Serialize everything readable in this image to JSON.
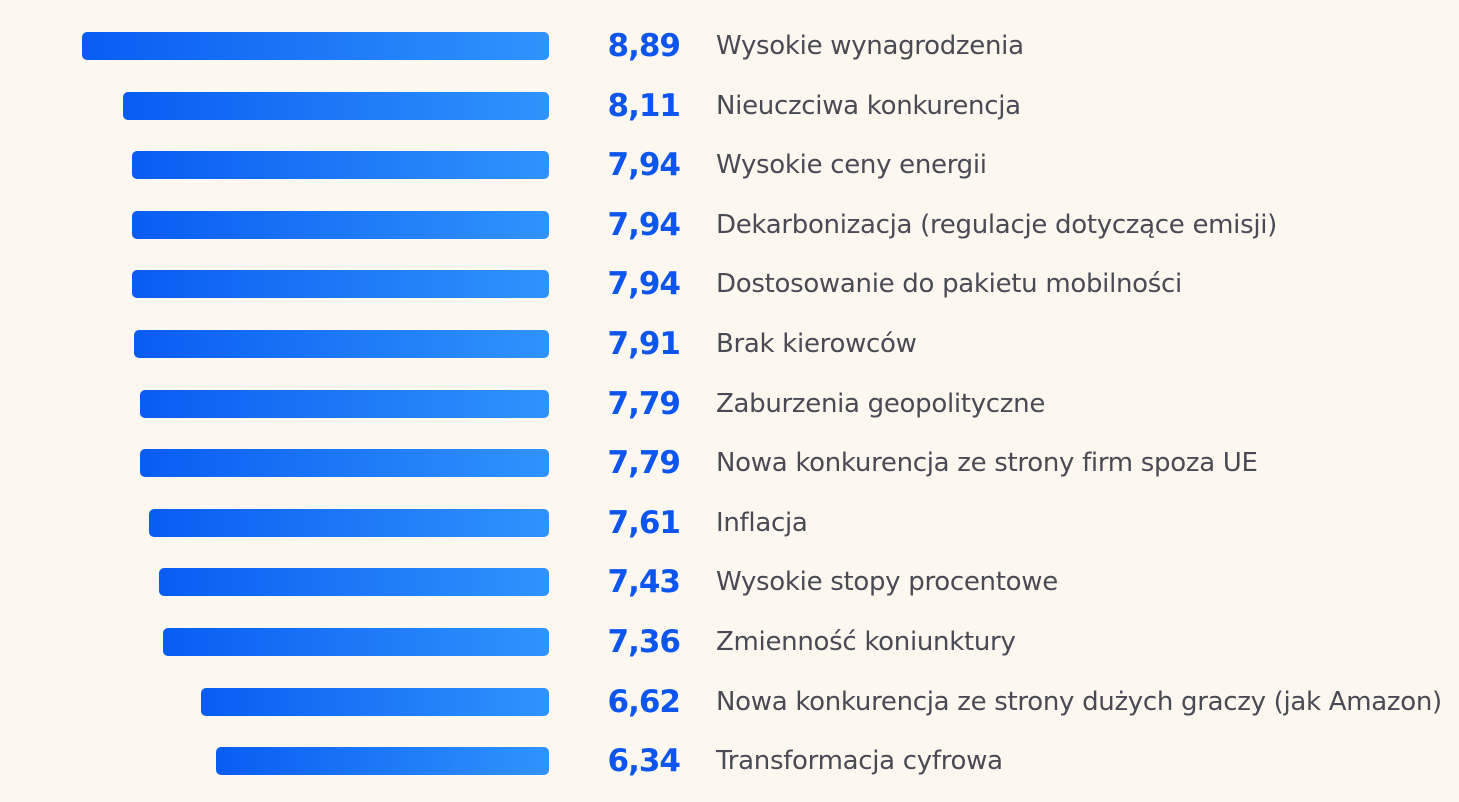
{
  "chart_data": {
    "type": "bar",
    "orientation": "horizontal",
    "categories": [
      "Wysokie wynagrodzenia",
      "Nieuczciwa konkurencja",
      "Wysokie ceny energii",
      "Dekarbonizacja (regulacje dotyczące emisji)",
      "Dostosowanie do pakietu mobilności",
      "Brak kierowców",
      "Zaburzenia geopolityczne",
      "Nowa konkurencja ze strony firm spoza UE",
      "Inflacja",
      "Wysokie stopy procentowe",
      "Zmienność koniunktury",
      "Nowa konkurencja ze strony dużych graczy (jak Amazon)",
      "Transformacja cyfrowa"
    ],
    "values": [
      8.89,
      8.11,
      7.94,
      7.94,
      7.94,
      7.91,
      7.79,
      7.79,
      7.61,
      7.43,
      7.36,
      6.62,
      6.34
    ],
    "value_labels": [
      "8,89",
      "8,11",
      "7,94",
      "7,94",
      "7,94",
      "7,91",
      "7,79",
      "7,79",
      "7,61",
      "7,43",
      "7,36",
      "6,62",
      "6,34"
    ],
    "title": "",
    "xlabel": "",
    "ylabel": "",
    "grid": false,
    "colors": {
      "bar_start": "#0a5cf2",
      "bar_end": "#2f93fb",
      "value_text": "#0c55ef",
      "label_text": "#4a4a55",
      "background": "#fcf8f0"
    }
  }
}
